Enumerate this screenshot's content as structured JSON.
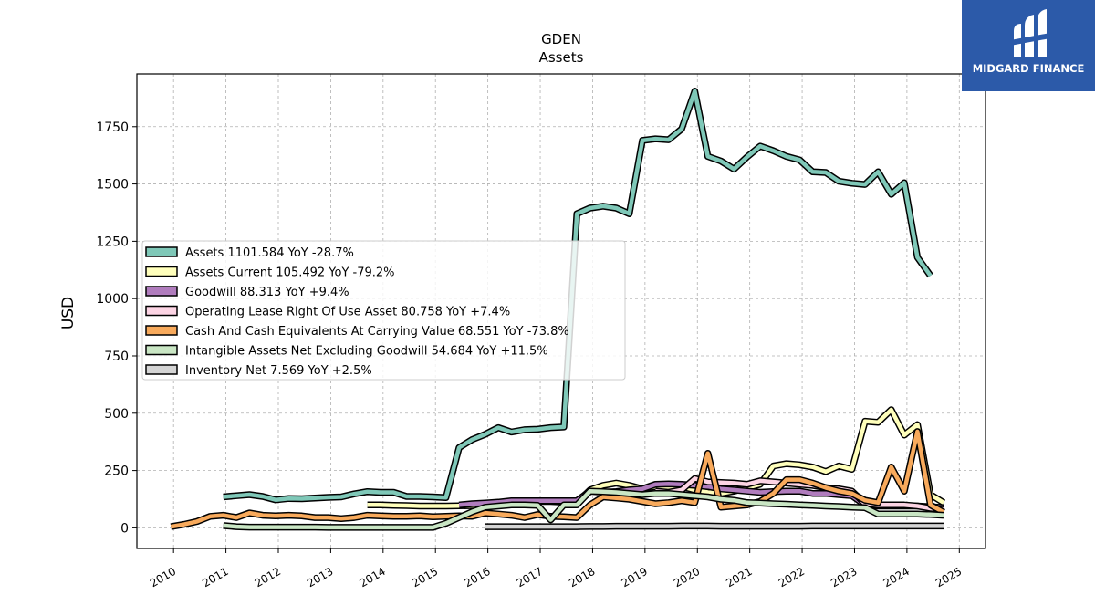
{
  "brand": {
    "name": "MIDGARD FINANCE",
    "icon": "midgard-logo-icon"
  },
  "chart_data": {
    "type": "line",
    "title": "GDEN",
    "subtitle": "Assets",
    "xlabel": "",
    "ylabel": "USD",
    "xlim": [
      2009.3,
      2025.5
    ],
    "ylim": [
      -90,
      1980
    ],
    "grid": true,
    "legend_position": "left",
    "x_ticks": [
      "2010",
      "2011",
      "2012",
      "2013",
      "2014",
      "2015",
      "2016",
      "2017",
      "2018",
      "2019",
      "2020",
      "2021",
      "2022",
      "2023",
      "2024",
      "2025"
    ],
    "y_ticks": [
      0,
      250,
      500,
      750,
      1000,
      1250,
      1500,
      1750
    ],
    "series": [
      {
        "name": "Assets",
        "legend": "Assets  1101.584 YoY -28.7%",
        "color": "#7fc8b8",
        "x": [
          2010.95,
          2011.2,
          2011.45,
          2011.7,
          2011.95,
          2012.2,
          2012.45,
          2012.7,
          2012.95,
          2013.2,
          2013.45,
          2013.7,
          2013.95,
          2014.2,
          2014.45,
          2014.7,
          2014.95,
          2015.2,
          2015.45,
          2015.7,
          2015.95,
          2016.2,
          2016.45,
          2016.7,
          2016.95,
          2017.2,
          2017.45,
          2017.7,
          2017.95,
          2018.2,
          2018.45,
          2018.7,
          2018.95,
          2019.2,
          2019.45,
          2019.7,
          2019.95,
          2020.2,
          2020.45,
          2020.7,
          2020.95,
          2021.2,
          2021.45,
          2021.7,
          2021.95,
          2022.2,
          2022.45,
          2022.7,
          2022.95,
          2023.2,
          2023.45,
          2023.7,
          2023.95,
          2024.2,
          2024.45,
          2024.7
        ],
        "y": [
          135,
          140,
          145,
          137,
          122,
          128,
          127,
          130,
          133,
          135,
          148,
          158,
          155,
          155,
          137,
          137,
          135,
          132,
          350,
          385,
          408,
          437,
          418,
          428,
          430,
          437,
          440,
          1370,
          1395,
          1403,
          1395,
          1370,
          1690,
          1697,
          1693,
          1740,
          1905,
          1620,
          1600,
          1565,
          1618,
          1665,
          1645,
          1620,
          1605,
          1553,
          1550,
          1512,
          1503,
          1498,
          1553,
          1455,
          1505,
          1180,
          1100,
          null
        ]
      },
      {
        "name": "Assets Current",
        "legend": "Assets Current  105.492 YoY -79.2%",
        "color": "#ffffbb",
        "x": [
          2013.7,
          2013.95,
          2014.2,
          2014.45,
          2014.7,
          2014.95,
          2015.2,
          2015.45,
          2015.7,
          2015.95,
          2016.2,
          2016.45,
          2016.7,
          2016.95,
          2017.2,
          2017.45,
          2017.7,
          2017.95,
          2018.2,
          2018.45,
          2018.7,
          2018.95,
          2019.2,
          2019.45,
          2019.7,
          2019.95,
          2020.2,
          2020.45,
          2020.7,
          2020.95,
          2021.2,
          2021.45,
          2021.7,
          2021.95,
          2022.2,
          2022.45,
          2022.7,
          2022.95,
          2023.2,
          2023.45,
          2023.7,
          2023.95,
          2024.2,
          2024.45,
          2024.7
        ],
        "y": [
          100,
          100,
          98,
          97,
          95,
          95,
          95,
          96,
          97,
          100,
          105,
          110,
          112,
          115,
          115,
          112,
          110,
          165,
          185,
          195,
          185,
          170,
          180,
          175,
          180,
          165,
          155,
          150,
          160,
          175,
          190,
          270,
          280,
          275,
          265,
          245,
          270,
          255,
          465,
          460,
          515,
          405,
          450,
          145,
          110
        ]
      },
      {
        "name": "Goodwill",
        "legend": "Goodwill  88.313 YoY +9.4%",
        "color": "#b07cbd",
        "x": [
          2015.45,
          2015.7,
          2015.95,
          2016.2,
          2016.45,
          2016.7,
          2016.95,
          2017.2,
          2017.45,
          2017.7,
          2017.95,
          2018.2,
          2018.45,
          2018.7,
          2018.95,
          2019.2,
          2019.45,
          2019.7,
          2019.95,
          2020.2,
          2020.45,
          2020.7,
          2020.95,
          2021.2,
          2021.45,
          2021.7,
          2021.95,
          2022.2,
          2022.45,
          2022.7,
          2022.95,
          2023.2,
          2023.45,
          2023.7,
          2023.95,
          2024.2,
          2024.45,
          2024.7
        ],
        "y": [
          100,
          105,
          108,
          112,
          118,
          118,
          118,
          118,
          118,
          118,
          160,
          155,
          158,
          165,
          170,
          190,
          192,
          190,
          185,
          180,
          170,
          165,
          160,
          155,
          158,
          160,
          160,
          150,
          150,
          145,
          140,
          100,
          95,
          95,
          95,
          95,
          92,
          88
        ]
      },
      {
        "name": "Operating Lease Right Of Use Asset",
        "legend": "Operating Lease Right Of Use Asset  80.758 YoY +7.4%",
        "color": "#fcd4e4",
        "x": [
          2019.2,
          2019.45,
          2019.7,
          2019.95,
          2020.2,
          2020.45,
          2020.7,
          2020.95,
          2021.2,
          2021.45,
          2021.7,
          2021.95,
          2022.2,
          2022.45,
          2022.7,
          2022.95,
          2023.2,
          2023.45,
          2023.7,
          2023.95,
          2024.2,
          2024.45,
          2024.7
        ],
        "y": [
          160,
          155,
          165,
          215,
          200,
          198,
          195,
          190,
          205,
          200,
          195,
          190,
          185,
          175,
          170,
          160,
          105,
          100,
          100,
          100,
          95,
          85,
          80
        ]
      },
      {
        "name": "Cash And Cash Equivalents At Carrying Value",
        "legend": "Cash And Cash Equivalents At Carrying Value  68.551 YoY -73.8%",
        "color": "#f8aa5c",
        "x": [
          2009.95,
          2010.2,
          2010.45,
          2010.7,
          2010.95,
          2011.2,
          2011.45,
          2011.7,
          2011.95,
          2012.2,
          2012.45,
          2012.7,
          2012.95,
          2013.2,
          2013.45,
          2013.7,
          2013.95,
          2014.2,
          2014.45,
          2014.7,
          2014.95,
          2015.2,
          2015.45,
          2015.7,
          2015.95,
          2016.2,
          2016.45,
          2016.7,
          2016.95,
          2017.2,
          2017.45,
          2017.7,
          2017.95,
          2018.2,
          2018.45,
          2018.7,
          2018.95,
          2019.2,
          2019.45,
          2019.7,
          2019.95,
          2020.2,
          2020.45,
          2020.7,
          2020.95,
          2021.2,
          2021.45,
          2021.7,
          2021.95,
          2022.2,
          2022.45,
          2022.7,
          2022.95,
          2023.2,
          2023.45,
          2023.7,
          2023.95,
          2024.2,
          2024.45,
          2024.7
        ],
        "y": [
          5,
          15,
          28,
          50,
          55,
          45,
          65,
          55,
          52,
          55,
          52,
          45,
          45,
          40,
          45,
          55,
          52,
          50,
          50,
          52,
          48,
          50,
          52,
          50,
          65,
          60,
          55,
          45,
          58,
          50,
          48,
          45,
          100,
          135,
          130,
          125,
          115,
          105,
          110,
          118,
          110,
          325,
          90,
          95,
          100,
          115,
          150,
          210,
          210,
          195,
          175,
          160,
          150,
          120,
          110,
          265,
          160,
          420,
          100,
          68
        ]
      },
      {
        "name": "Intangible Assets Net Excluding Goodwill",
        "legend": "Intangible Assets Net Excluding Goodwill  54.684 YoY +11.5%",
        "color": "#c9e6c4",
        "x": [
          2010.95,
          2011.2,
          2011.45,
          2011.7,
          2011.95,
          2012.2,
          2012.45,
          2012.7,
          2012.95,
          2013.2,
          2013.45,
          2013.7,
          2013.95,
          2014.2,
          2014.45,
          2014.7,
          2014.95,
          2015.2,
          2015.45,
          2015.7,
          2015.95,
          2016.2,
          2016.45,
          2016.7,
          2016.95,
          2017.2,
          2017.45,
          2017.7,
          2017.95,
          2018.2,
          2018.45,
          2018.7,
          2018.95,
          2019.2,
          2019.45,
          2019.7,
          2019.95,
          2020.2,
          2020.45,
          2020.7,
          2020.95,
          2021.2,
          2021.45,
          2021.7,
          2021.95,
          2022.2,
          2022.45,
          2022.7,
          2022.95,
          2023.2,
          2023.45,
          2023.7,
          2023.95,
          2024.2,
          2024.45,
          2024.7
        ],
        "y": [
          10,
          5,
          3,
          3,
          3,
          3,
          3,
          3,
          2,
          2,
          2,
          2,
          2,
          2,
          2,
          2,
          2,
          20,
          45,
          70,
          90,
          95,
          100,
          100,
          98,
          35,
          100,
          100,
          160,
          158,
          155,
          150,
          145,
          150,
          150,
          145,
          140,
          135,
          125,
          120,
          110,
          108,
          105,
          103,
          100,
          98,
          95,
          93,
          90,
          88,
          60,
          60,
          60,
          60,
          58,
          55
        ]
      },
      {
        "name": "Inventory Net",
        "legend": "Inventory Net  7.569 YoY +2.5%",
        "color": "#d4d4d4",
        "x": [
          2015.95,
          2016.2,
          2016.45,
          2016.7,
          2016.95,
          2017.2,
          2017.45,
          2017.7,
          2017.95,
          2018.2,
          2018.45,
          2018.7,
          2018.95,
          2019.2,
          2019.45,
          2019.7,
          2019.95,
          2020.2,
          2020.45,
          2020.7,
          2020.95,
          2021.2,
          2021.45,
          2021.7,
          2021.95,
          2022.2,
          2022.45,
          2022.7,
          2022.95,
          2023.2,
          2023.45,
          2023.7,
          2023.95,
          2024.2,
          2024.45,
          2024.7
        ],
        "y": [
          5,
          5,
          5,
          5,
          5,
          5,
          5,
          5,
          6,
          6,
          7,
          7,
          7,
          7,
          7,
          8,
          8,
          8,
          7,
          7,
          7,
          7,
          7,
          7,
          7,
          8,
          8,
          8,
          8,
          8,
          8,
          8,
          8,
          8,
          8,
          8
        ]
      }
    ]
  }
}
